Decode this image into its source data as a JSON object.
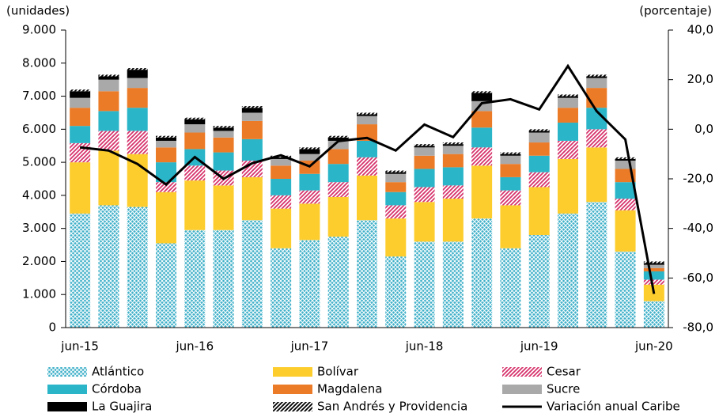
{
  "chart_data": {
    "type": "bar",
    "stacked": true,
    "y_label": "(unidades)",
    "y2_label": "(porcentaje)",
    "categories": [
      "jun-15",
      null,
      null,
      null,
      "jun-16",
      null,
      null,
      null,
      "jun-17",
      null,
      null,
      null,
      "jun-18",
      null,
      null,
      null,
      "jun-19",
      null,
      null,
      null,
      "jun-20"
    ],
    "ylim": [
      0,
      9000
    ],
    "yticks": [
      0,
      {
        "value": 1000,
        "label": "1.000"
      },
      {
        "value": 2000,
        "label": "2.000"
      },
      {
        "value": 3000,
        "label": "3.000"
      },
      {
        "value": 4000,
        "label": "4.000"
      },
      {
        "value": 5000,
        "label": "5.000"
      },
      {
        "value": 6000,
        "label": "6.000"
      },
      {
        "value": 7000,
        "label": "7.000"
      },
      {
        "value": 8000,
        "label": "8.000"
      },
      {
        "value": 9000,
        "label": "9.000"
      }
    ],
    "y2lim": [
      -80,
      40
    ],
    "y2ticks": [
      {
        "value": -80,
        "label": "-80,0"
      },
      {
        "value": -60,
        "label": "-60,0"
      },
      {
        "value": -40,
        "label": "-40,0"
      },
      {
        "value": -20,
        "label": "-20,0"
      },
      {
        "value": 0,
        "label": "0,0"
      },
      {
        "value": 20,
        "label": "20,0"
      },
      {
        "value": 40,
        "label": "40,0"
      }
    ],
    "series": [
      {
        "name": "Atlántico",
        "color": "#3fb0c9",
        "pattern": "crosshatch",
        "values": [
          3450,
          3700,
          3650,
          2550,
          2950,
          2950,
          3250,
          2400,
          2650,
          2750,
          3250,
          2150,
          2600,
          2600,
          3300,
          2400,
          2800,
          3450,
          3800,
          2300,
          800
        ]
      },
      {
        "name": "Bolívar",
        "color": "#fdcd2e",
        "values": [
          1550,
          1650,
          1600,
          1550,
          1500,
          1350,
          1300,
          1200,
          1100,
          1200,
          1350,
          1150,
          1200,
          1300,
          1600,
          1300,
          1450,
          1650,
          1650,
          1250,
          500
        ]
      },
      {
        "name": "Cesar",
        "color": "#d6336c",
        "pattern": "diagonal",
        "values": [
          580,
          600,
          700,
          300,
          450,
          450,
          500,
          400,
          400,
          450,
          550,
          400,
          450,
          400,
          550,
          450,
          450,
          550,
          550,
          350,
          150
        ]
      },
      {
        "name": "Córdoba",
        "color": "#2bb5c8",
        "values": [
          520,
          600,
          700,
          600,
          500,
          550,
          650,
          500,
          500,
          550,
          500,
          400,
          550,
          550,
          600,
          400,
          500,
          550,
          650,
          500,
          250
        ]
      },
      {
        "name": "Magdalena",
        "color": "#ec7b28",
        "values": [
          550,
          600,
          600,
          450,
          500,
          450,
          550,
          400,
          400,
          450,
          500,
          300,
          400,
          400,
          500,
          400,
          400,
          450,
          600,
          400,
          100
        ]
      },
      {
        "name": "Sucre",
        "color": "#a9a9a9",
        "values": [
          300,
          350,
          300,
          200,
          250,
          200,
          250,
          200,
          200,
          250,
          250,
          250,
          250,
          250,
          300,
          250,
          300,
          300,
          300,
          250,
          100
        ]
      },
      {
        "name": "La Guajira",
        "color": "#000000",
        "values": [
          200,
          100,
          250,
          100,
          150,
          100,
          150,
          50,
          150,
          100,
          50,
          50,
          50,
          50,
          250,
          50,
          50,
          50,
          50,
          50,
          50
        ]
      },
      {
        "name": "San Andrés y Providencia",
        "color": "#000000",
        "pattern": "diagonal",
        "values": [
          50,
          50,
          50,
          50,
          50,
          50,
          50,
          50,
          50,
          50,
          50,
          50,
          50,
          50,
          50,
          50,
          50,
          50,
          50,
          50,
          50
        ]
      },
      {
        "name": "Variación anual Caribe",
        "color": "#000000",
        "type": "line",
        "axis": "y2",
        "values": [
          -7.3,
          -8.6,
          -14,
          -22.3,
          -11.2,
          -20,
          -13.7,
          -10.5,
          -15,
          -4.8,
          -3.5,
          -8.6,
          1.9,
          -3.2,
          10.5,
          12.1,
          8,
          25.5,
          7.3,
          -4.1,
          -66.4
        ]
      }
    ]
  }
}
